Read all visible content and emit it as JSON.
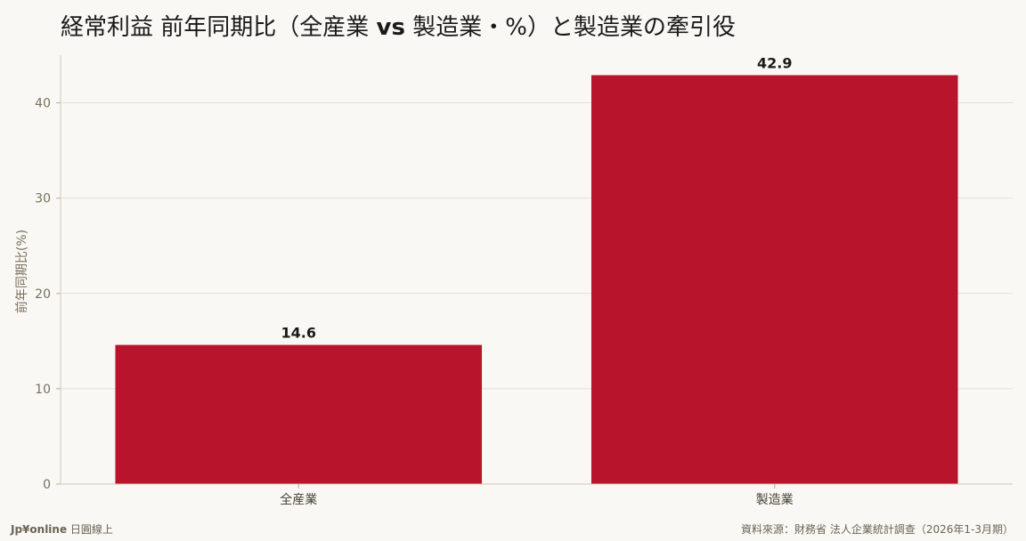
{
  "title_parts": {
    "part1": "経常利益 前年同期比（全産業 ",
    "vs": "vs",
    "part2": " 製造業・%）と製造業の牽引役"
  },
  "footer": {
    "brand": "Jp¥online",
    "brand_suffix": " 日圓線上",
    "source": "資料來源：財務省 法人企業統計調查（2026年1-3月期）"
  },
  "colors": {
    "bar": "#b8152d",
    "axis_text": "#7a705c",
    "grid": "#e4e0d6",
    "label": "#1a1a1a"
  },
  "chart_data": {
    "type": "bar",
    "categories": [
      "全産業",
      "製造業"
    ],
    "values": [
      14.6,
      42.9
    ],
    "data_labels": [
      "14.6",
      "42.9"
    ],
    "title": "経常利益 前年同期比（全産業 vs 製造業・%）と製造業の牽引役",
    "xlabel": "",
    "ylabel": "前年同期比(%)",
    "ylim": [
      0,
      45
    ],
    "yticks": [
      0,
      10,
      20,
      30,
      40
    ],
    "grid": true
  }
}
